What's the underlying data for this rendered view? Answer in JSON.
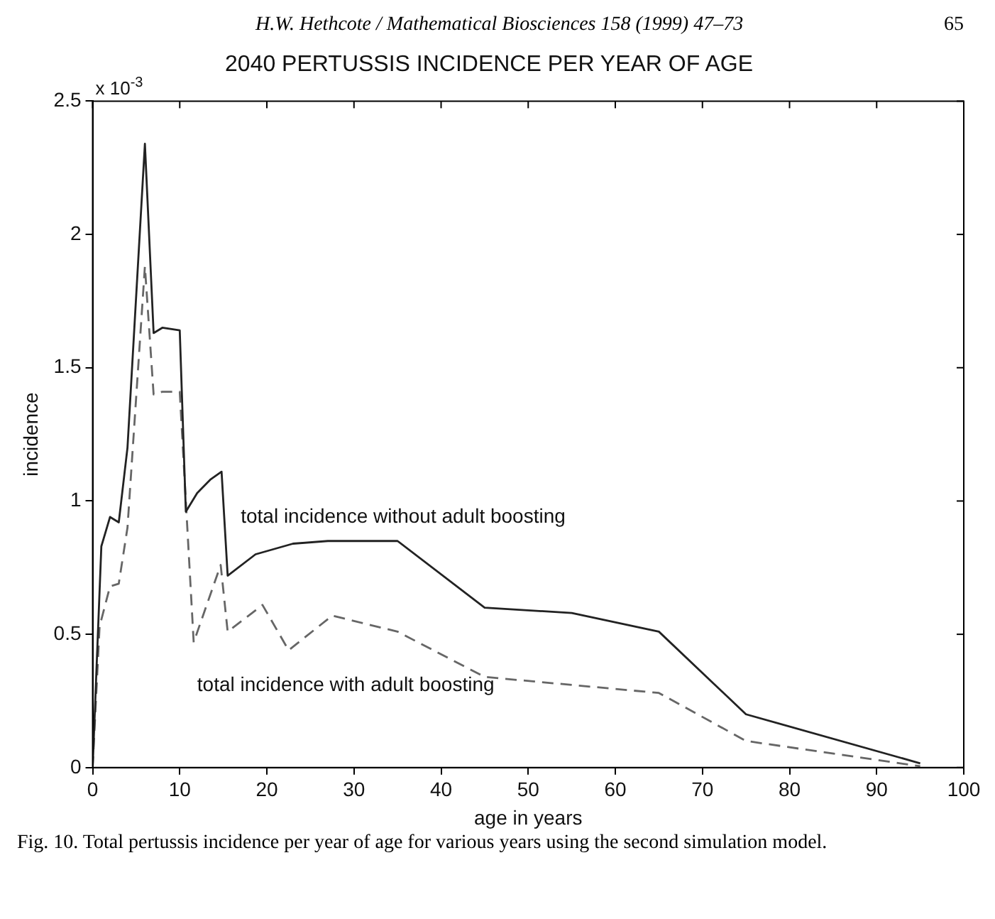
{
  "chart_data": {
    "type": "line",
    "title": "2040 PERTUSSIS INCIDENCE PER YEAR OF AGE",
    "xlabel": "age in years",
    "ylabel": "incidence",
    "annotations": [
      "H.W. Hethcote / Mathematical Biosciences 158 (1999) 47–73",
      "65",
      "x 10$^{-3}$",
      "Fig. 10. Total pertussis incidence per year of age for various years using the second simulation model."
    ],
    "xlim": [
      0,
      100
    ],
    "xticks": [
      0,
      10,
      20,
      30,
      40,
      50,
      60,
      70,
      80,
      90,
      100
    ],
    "ylim": [
      0,
      2.5
    ],
    "yticks": [
      0,
      0.5,
      1,
      1.5,
      2,
      2.5
    ],
    "grid": false,
    "marker": "none",
    "series": [
      {
        "name": "total incidence without adult boosting",
        "color": "#222222",
        "line_style": "solid",
        "x": [
          0,
          1,
          2,
          3,
          4,
          6,
          7,
          8,
          10,
          10.7,
          12,
          13.5,
          14.8,
          15.5,
          18.7,
          23,
          27,
          35,
          45,
          55,
          65,
          75,
          95
        ],
        "values": [
          0,
          0.83,
          0.94,
          0.92,
          1.2,
          2.34,
          1.63,
          1.65,
          1.64,
          0.96,
          1.03,
          1.08,
          1.11,
          0.72,
          0.8,
          0.84,
          0.85,
          0.85,
          0.6,
          0.58,
          0.51,
          0.2,
          0.016
        ]
      },
      {
        "name": "total incidence with adult boosting",
        "color": "#666666",
        "line_style": "dashed",
        "x": [
          0,
          0.8,
          2,
          3,
          4,
          6,
          7,
          8,
          10,
          11.6,
          14.7,
          15.5,
          19.5,
          22.5,
          27.5,
          35,
          45,
          55,
          65,
          75,
          95
        ],
        "values": [
          0,
          0.53,
          0.68,
          0.69,
          0.9,
          1.88,
          1.4,
          1.41,
          1.41,
          0.47,
          0.76,
          0.51,
          0.61,
          0.44,
          0.57,
          0.51,
          0.34,
          0.31,
          0.28,
          0.1,
          0.005
        ]
      }
    ]
  }
}
